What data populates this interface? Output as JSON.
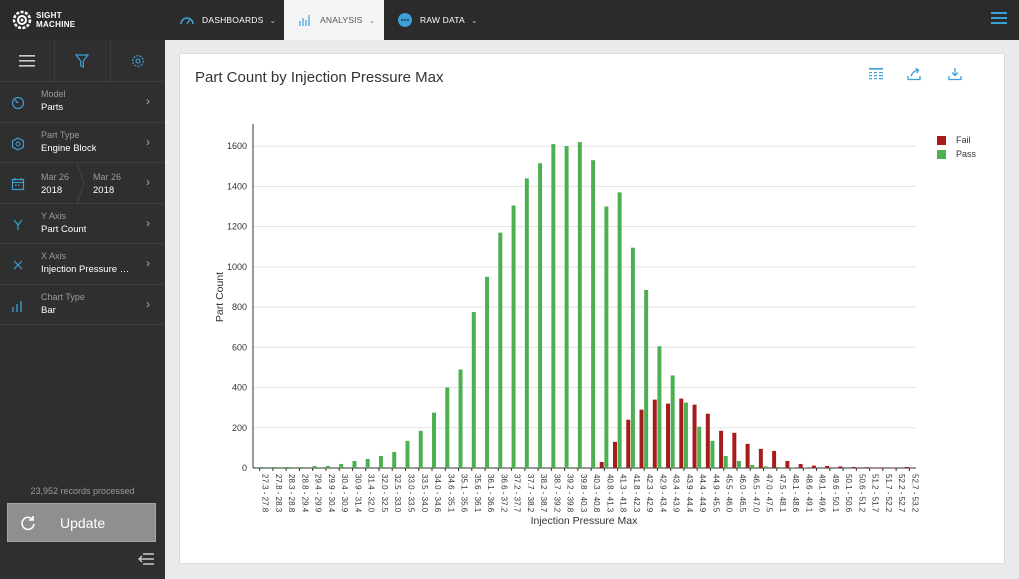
{
  "app": {
    "logo_line1": "SIGHT",
    "logo_line2": "MACHINE"
  },
  "nav": {
    "dashboards": "DASHBOARDS",
    "analysis": "ANALYSIS",
    "raw_data": "RAW DATA",
    "accent": "#3ba0d8"
  },
  "sidebar": {
    "items": [
      {
        "label": "Model",
        "value": "Parts",
        "icon": "gauge-icon"
      },
      {
        "label": "Part Type",
        "value": "Engine Block",
        "icon": "hexagon-icon"
      },
      {
        "label": "Mar 26",
        "value": "2018",
        "label2": "Mar 26",
        "value2": "2018",
        "icon": "calendar-icon"
      },
      {
        "label": "Y Axis",
        "value": "Part Count",
        "icon": "y-axis-icon"
      },
      {
        "label": "X Axis",
        "value": "Injection Pressure Max",
        "icon": "x-axis-icon"
      },
      {
        "label": "Chart Type",
        "value": "Bar",
        "icon": "bar-chart-icon"
      }
    ],
    "records_processed": "23,952 records processed",
    "update_label": "Update"
  },
  "card": {
    "title": "Part Count by Injection Pressure Max"
  },
  "chart_data": {
    "type": "bar",
    "title": "Part Count by Injection Pressure Max",
    "xlabel": "Injection Pressure Max",
    "ylabel": "Part Count",
    "ylim": [
      0,
      1700
    ],
    "yticks": [
      0,
      200,
      400,
      600,
      800,
      1000,
      1200,
      1400,
      1600
    ],
    "grid": true,
    "legend_position": "top-right",
    "categories": [
      "27.3 - 27.8",
      "27.8 - 28.3",
      "28.3 - 28.8",
      "28.8 - 29.4",
      "29.4 - 29.9",
      "29.9 - 30.4",
      "30.4 - 30.9",
      "30.9 - 31.4",
      "31.4 - 32.0",
      "32.0 - 32.5",
      "32.5 - 33.0",
      "33.0 - 33.5",
      "33.5 - 34.0",
      "34.0 - 34.6",
      "34.6 - 35.1",
      "35.1 - 35.6",
      "35.6 - 36.1",
      "36.1 - 36.6",
      "36.6 - 37.2",
      "37.2 - 37.7",
      "37.7 - 38.2",
      "38.2 - 38.7",
      "38.7 - 39.2",
      "39.2 - 39.8",
      "39.8 - 40.3",
      "40.3 - 40.8",
      "40.8 - 41.3",
      "41.3 - 41.8",
      "41.8 - 42.3",
      "42.3 - 42.9",
      "42.9 - 43.4",
      "43.4 - 43.9",
      "43.9 - 44.4",
      "44.4 - 44.9",
      "44.9 - 45.5",
      "45.5 - 46.0",
      "46.0 - 46.5",
      "46.5 - 47.0",
      "47.0 - 47.5",
      "47.5 - 48.1",
      "48.1 - 48.6",
      "48.6 - 49.1",
      "49.1 - 49.6",
      "49.6 - 50.1",
      "50.1 - 50.6",
      "50.6 - 51.2",
      "51.2 - 51.7",
      "51.7 - 52.2",
      "52.2 - 52.7",
      "52.7 - 53.2"
    ],
    "tick_labels": [
      "27.3 - 27.8",
      "27.8 - 28.3",
      "28.3 - 28.8",
      "28.8 - 29.4",
      "29.4 - 29.9",
      "29.9 - 30.4",
      "30.4 - 30.9",
      "30.9 - 31.4",
      "31.4 - 32.0",
      "32.0 - 32.5",
      "32.5 - 33.0",
      "33.0 - 33.5",
      "33.5 - 34.0",
      "34.0 - 34.6",
      "34.6 - 35.1",
      "35.1 - 35.6",
      "35.6 - 36.1",
      "36.1 - 36.6",
      "36.6 - 37.2",
      "37.2 - 37.7",
      "37.7 - 38.2",
      "38.2 - 38.7",
      "38.7 - 39.2",
      "39.2 - 39.8",
      "39.8 - 40.3",
      "40.3 - 40.8",
      "40.8 - 41.3",
      "41.3 - 41.8",
      "41.8 - 42.3",
      "42.3 - 42.9",
      "42.9 - 43.4",
      "43.4 - 43.9",
      "43.9 - 44.4",
      "44.4 - 44.9",
      "44.9 - 45.5",
      "45.5 - 46.0",
      "46.0 - 46.5",
      "46.5 - 47.0",
      "47.0 - 47.5",
      "47.5 - 48.1",
      "48.1 - 48.6",
      "48.6 - 49.1",
      "49.1 - 49.6",
      "49.6 - 50.1",
      "50.1 - 50.6",
      "50.6 - 51.2",
      "51.2 - 51.7",
      "51.7 - 52.2",
      "52.2 - 52.7",
      "52.7 - 53.2"
    ],
    "series": [
      {
        "name": "Fail",
        "color": "#a61c1c",
        "values": [
          0,
          0,
          0,
          0,
          0,
          0,
          0,
          0,
          0,
          0,
          0,
          0,
          0,
          0,
          0,
          0,
          0,
          0,
          0,
          0,
          0,
          0,
          0,
          0,
          0,
          0,
          30,
          130,
          240,
          290,
          340,
          320,
          345,
          315,
          270,
          185,
          175,
          120,
          95,
          85,
          35,
          20,
          12,
          10,
          8,
          5,
          4,
          3,
          2,
          5
        ]
      },
      {
        "name": "Pass",
        "color": "#4caf50",
        "values": [
          5,
          5,
          5,
          5,
          10,
          10,
          20,
          35,
          45,
          60,
          80,
          135,
          185,
          275,
          400,
          490,
          775,
          950,
          1170,
          1305,
          1440,
          1515,
          1610,
          1600,
          1620,
          1530,
          1300,
          1370,
          1095,
          885,
          605,
          460,
          325,
          205,
          135,
          60,
          35,
          15,
          8,
          5,
          3,
          2,
          0,
          0,
          0,
          0,
          0,
          0,
          0,
          0
        ]
      }
    ]
  }
}
